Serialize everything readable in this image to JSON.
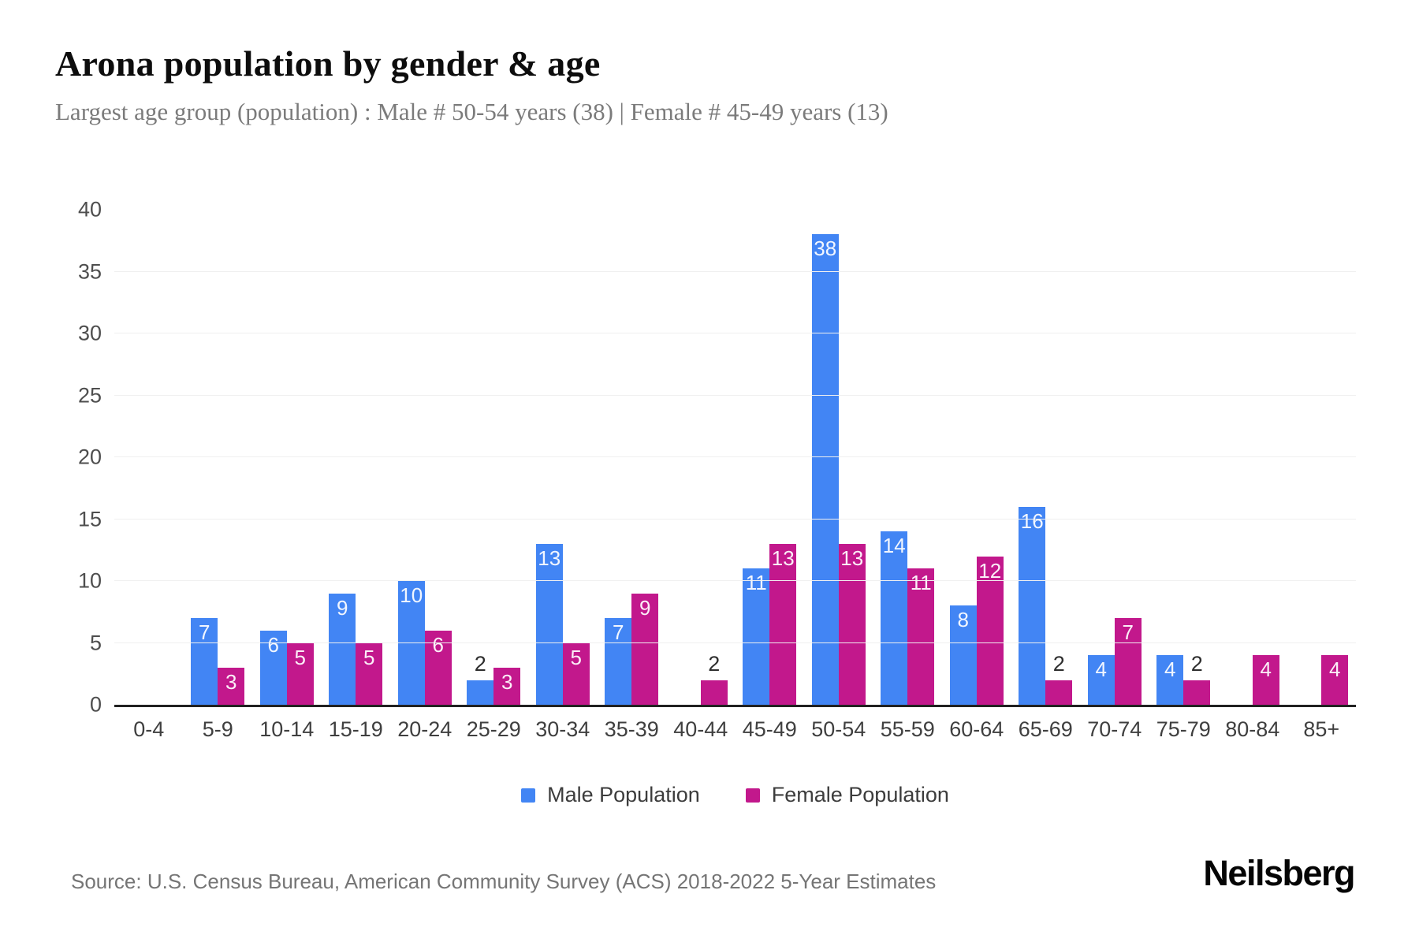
{
  "header": {
    "title": "Arona population by gender & age",
    "subtitle": "Largest age group (population) : Male # 50-54 years (38) | Female # 45-49 years (13)"
  },
  "chart_data": {
    "type": "bar",
    "grouped": true,
    "categories": [
      "0-4",
      "5-9",
      "10-14",
      "15-19",
      "20-24",
      "25-29",
      "30-34",
      "35-39",
      "40-44",
      "45-49",
      "50-54",
      "55-59",
      "60-64",
      "65-69",
      "70-74",
      "75-79",
      "80-84",
      "85+"
    ],
    "series": [
      {
        "name": "Male Population",
        "color": "#4285f4",
        "values": [
          0,
          7,
          6,
          9,
          10,
          2,
          13,
          7,
          0,
          11,
          38,
          14,
          8,
          16,
          4,
          4,
          0,
          0
        ]
      },
      {
        "name": "Female Population",
        "color": "#c2188c",
        "values": [
          0,
          3,
          5,
          5,
          6,
          3,
          5,
          9,
          2,
          13,
          13,
          11,
          12,
          2,
          7,
          2,
          4,
          4
        ]
      }
    ],
    "title": "Arona population by gender & age",
    "xlabel": "",
    "ylabel": "",
    "ylim": [
      0,
      40
    ],
    "yticks": [
      0,
      5,
      10,
      15,
      20,
      25,
      30,
      35,
      40
    ],
    "grid": "horizontal lines at 5-35, none at 40",
    "legend_position": "bottom",
    "value_labels": "white inside bar top when value >= 3, dark above bar when value is 1-2"
  },
  "footer": {
    "source": "Source: U.S. Census Bureau, American Community Survey (ACS) 2018-2022 5-Year Estimates",
    "brand": "Neilsberg"
  },
  "colors": {
    "male": "#4285f4",
    "female": "#c2188c",
    "grid": "#f0f0f0",
    "axis": "#222222"
  }
}
